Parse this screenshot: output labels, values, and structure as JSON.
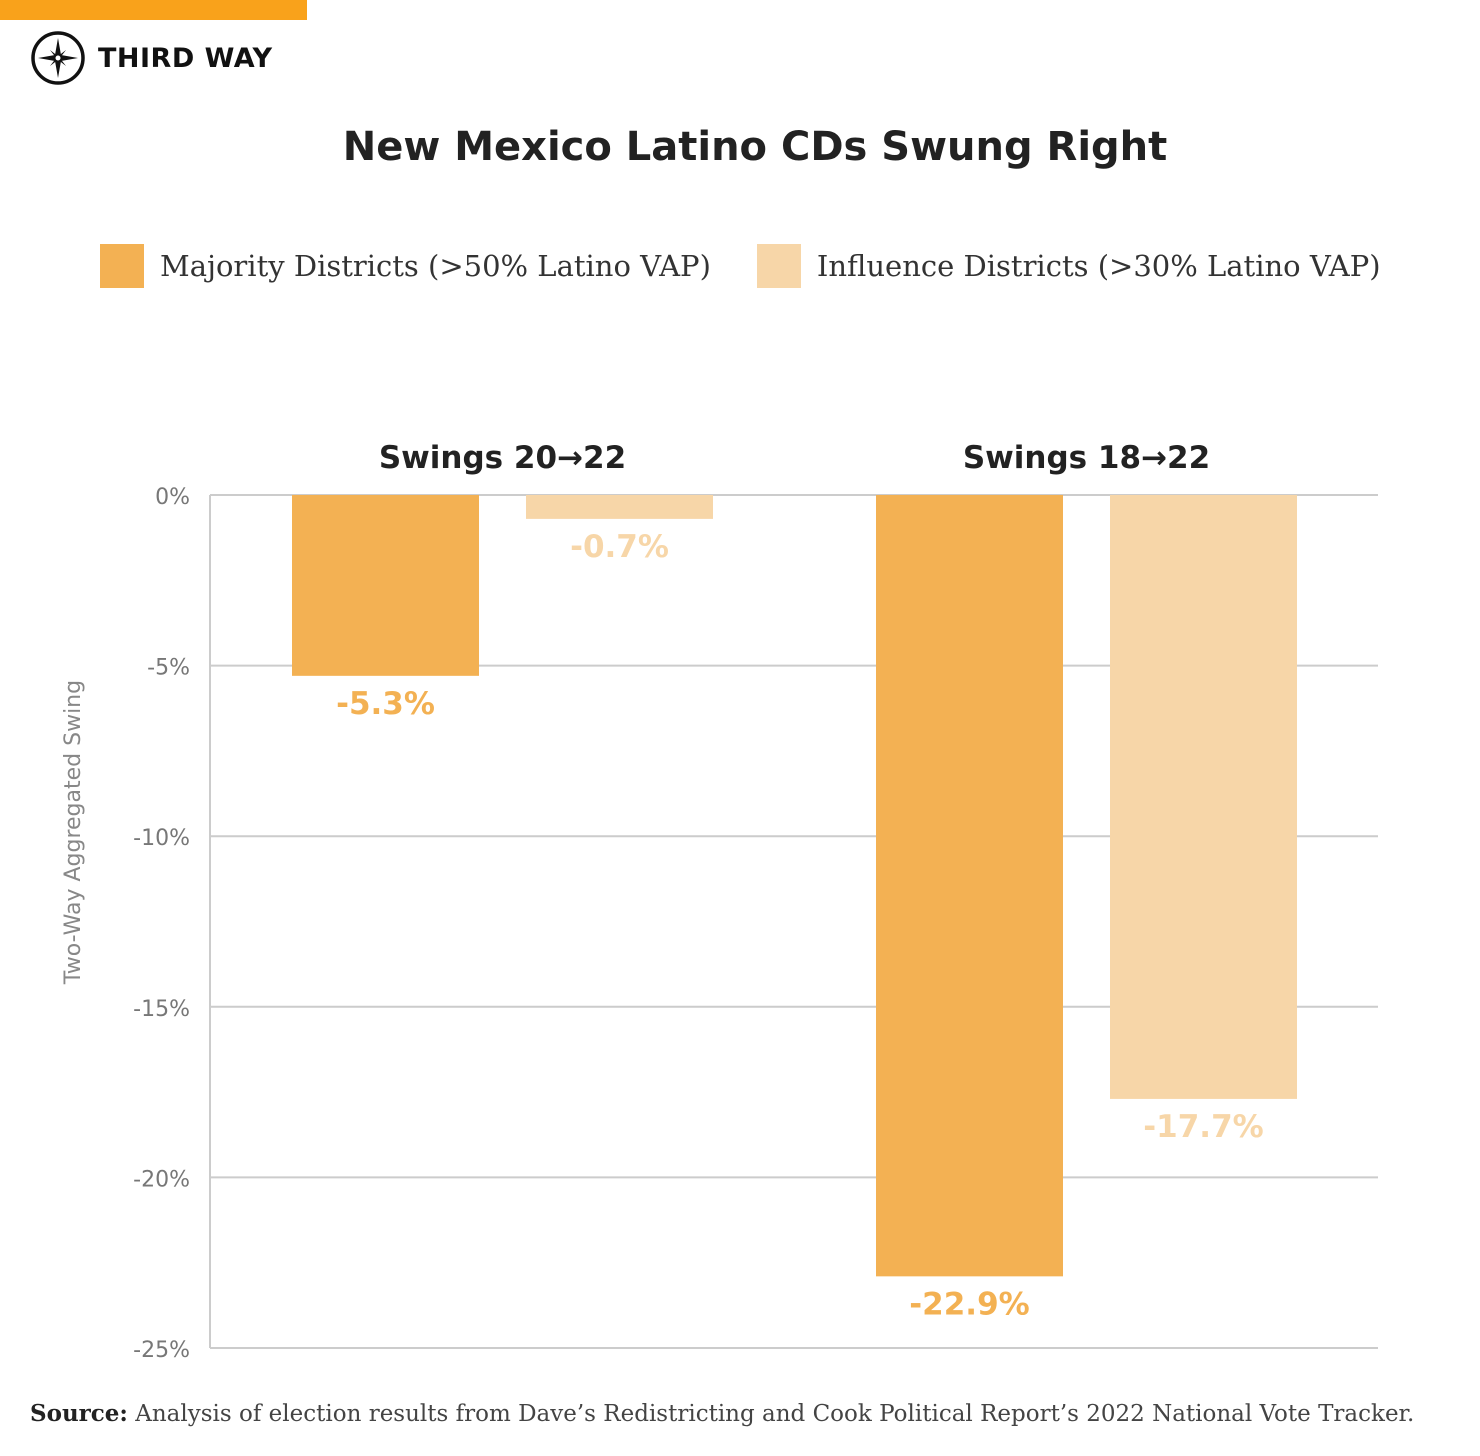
{
  "brand": {
    "name": "THIRD WAY",
    "accent": "#F9A21B"
  },
  "chart_data": {
    "type": "bar",
    "title": "New Mexico Latino CDs Swung Right",
    "ylabel": "Two-Way Aggregated Swing",
    "xlabel": "",
    "categories": [
      "Swings 20→22",
      "Swings 18→22"
    ],
    "series": [
      {
        "name": "Majority Districts (>50% Latino VAP)",
        "values": [
          -5.3,
          -22.9
        ],
        "color": "#F3B153",
        "labels": [
          "-5.3%",
          "-22.9%"
        ]
      },
      {
        "name": "Influence Districts (>30% Latino VAP)",
        "values": [
          -0.7,
          -17.7
        ],
        "color": "#F7D6A8",
        "labels": [
          "-0.7%",
          "-17.7%"
        ]
      }
    ],
    "ylim": [
      -25,
      0
    ],
    "yticks": [
      0,
      -5,
      -10,
      -15,
      -20,
      -25
    ],
    "ytick_labels": [
      "0%",
      "-5%",
      "-10%",
      "-15%",
      "-20%",
      "-25%"
    ],
    "grid": true,
    "legend_position": "top"
  },
  "source": {
    "label": "Source:",
    "text": "Analysis of election results from Dave’s Redistricting and Cook Political Report’s 2022 National Vote Tracker."
  }
}
